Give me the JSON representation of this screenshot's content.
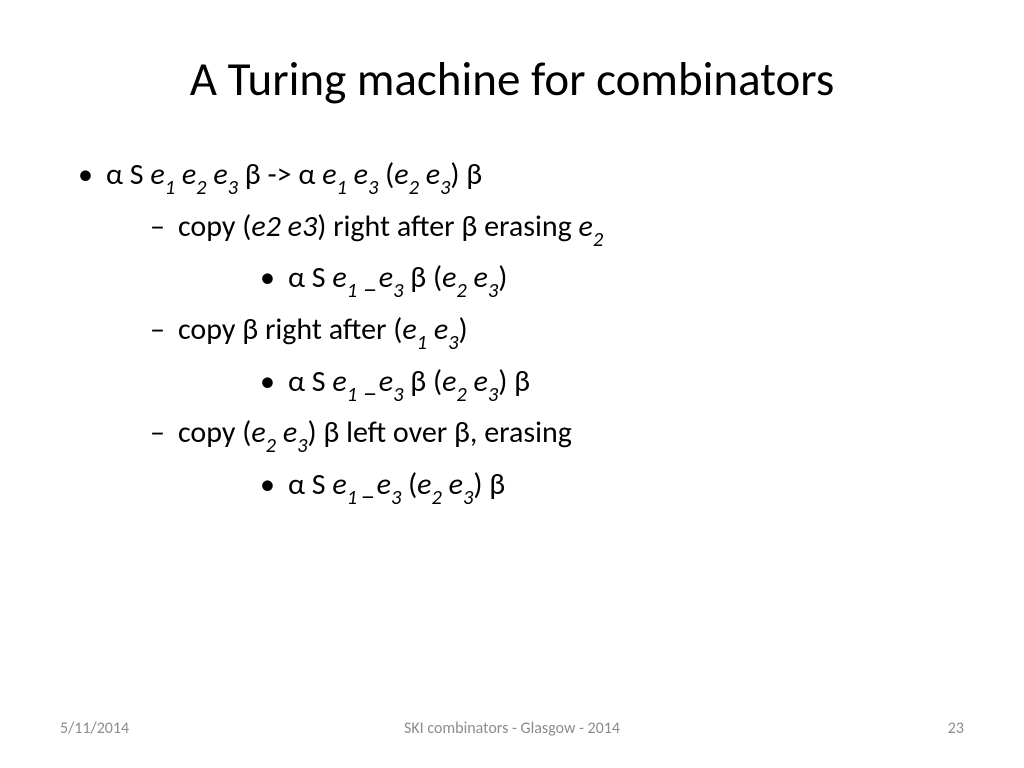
{
  "slide": {
    "title": "A Turing machine for combinators",
    "background_color": "#ffffff",
    "text_color": "#000000",
    "title_fontsize": 47,
    "body_fontsize": 30,
    "font_family": "Calibri",
    "bullets": {
      "lvl1_marker": "•",
      "lvl2_marker": "–",
      "lvl3_marker": "•"
    },
    "content": {
      "line1": {
        "prefix": "α S ",
        "e1": "e",
        "s1": "1",
        "sp1": " ",
        "e2": "e",
        "s2": "2",
        "sp2": " ",
        "e3": "e",
        "s3": "3",
        "mid": " β -> α ",
        "e4": "e",
        "s4": "1",
        "sp3": " ",
        "e5": "e",
        "s5": "3",
        "op": " (",
        "e6": "e",
        "s6": "2",
        "sp4": " ",
        "e7": "e",
        "s7": "3",
        "cp": ") β"
      },
      "line2": {
        "t1": "copy (",
        "e1": "e2 e3",
        "t2": ") right after β erasing ",
        "e2": "e",
        "s2": "2"
      },
      "line3": {
        "prefix": "α S ",
        "e1": "e",
        "s1": "1",
        "gap": " _",
        "e2": "e",
        "s2": "3",
        "mid": " β (",
        "e3": "e",
        "s3": "2",
        "sp": " ",
        "e4": "e",
        "s4": "3",
        "cp": ")"
      },
      "line4": {
        "t1": "copy β right after (",
        "e1": "e",
        "s1": "1",
        "sp": " ",
        "e2": "e",
        "s2": "3",
        "t2": ")"
      },
      "line5": {
        "prefix": "α S ",
        "e1": "e",
        "s1": "1",
        "gap": " _",
        "e2": "e",
        "s2": "3",
        "mid": " β (",
        "e3": "e",
        "s3": "2",
        "sp": " ",
        "e4": "e",
        "s4": "3",
        "cp": ") β"
      },
      "line6": {
        "t1": "copy (",
        "e1": "e",
        "s1": "2",
        "sp": " ",
        "e2": "e",
        "s2": "3",
        "t2": ") β left over β, erasing"
      },
      "line7": {
        "prefix": "α S ",
        "e1": "e",
        "s1": "1 ",
        "gap": "_",
        "e2": "e",
        "s2": "3",
        "mid": " (",
        "e3": "e",
        "s3": "2",
        "sp": " ",
        "e4": "e",
        "s4": "3",
        "cp": ") β"
      }
    },
    "footer": {
      "date": "5/11/2014",
      "center": "SKI combinators - Glasgow - 2014",
      "page": "23",
      "color": "#8c8c8c",
      "fontsize": 16
    }
  }
}
